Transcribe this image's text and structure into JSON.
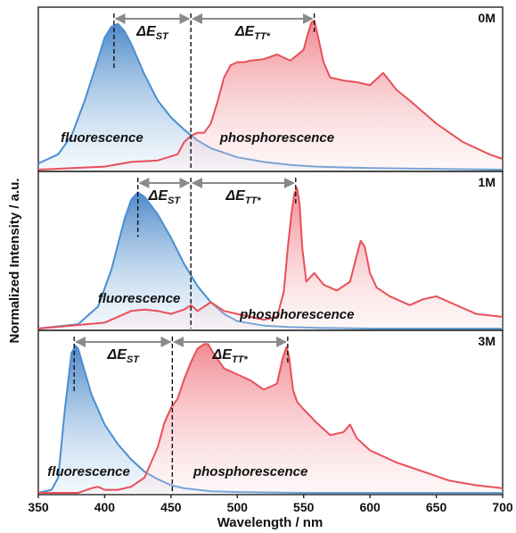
{
  "chart_data": {
    "type": "area",
    "xlabel": "Wavelength / nm",
    "ylabel": "Normalized Intensity / a.u.",
    "xlim": [
      350,
      700
    ],
    "x_ticks": [
      350,
      400,
      450,
      500,
      550,
      600,
      650,
      700
    ],
    "ylim": [
      0,
      1
    ],
    "grid": false,
    "colors": {
      "fluorescence": "#4a8fd0",
      "phosphorescence": "#e8505b"
    },
    "panels": [
      {
        "label": "0M",
        "fluorescence_label": "fluorescence",
        "phosphorescence_label": "phosphorescence",
        "delta_st_label": "ΔE",
        "delta_st_sub": "ST",
        "delta_tt_label": "ΔE",
        "delta_tt_sub": "TT*",
        "marker_fluor_peak": 407,
        "marker_onset": 465,
        "marker_phos_peak": 558,
        "series": [
          {
            "name": "fluorescence",
            "x": [
              350,
              365,
              375,
              385,
              395,
              400,
              405,
              410,
              415,
              420,
              430,
              440,
              450,
              460,
              470,
              480,
              500,
              520,
              540,
              560,
              600,
              650,
              700
            ],
            "y": [
              0.04,
              0.1,
              0.22,
              0.45,
              0.72,
              0.86,
              0.93,
              0.95,
              0.9,
              0.82,
              0.62,
              0.45,
              0.34,
              0.26,
              0.19,
              0.14,
              0.08,
              0.05,
              0.03,
              0.02,
              0.01,
              0.005,
              0.0
            ]
          },
          {
            "name": "phosphorescence",
            "x": [
              350,
              400,
              420,
              440,
              455,
              460,
              465,
              470,
              475,
              480,
              485,
              490,
              495,
              500,
              505,
              510,
              520,
              530,
              540,
              550,
              553,
              556,
              558,
              560,
              565,
              570,
              580,
              590,
              600,
              610,
              620,
              630,
              650,
              670,
              690,
              700
            ],
            "y": [
              0.0,
              0.02,
              0.05,
              0.06,
              0.1,
              0.18,
              0.22,
              0.24,
              0.24,
              0.3,
              0.44,
              0.6,
              0.68,
              0.7,
              0.7,
              0.71,
              0.72,
              0.75,
              0.71,
              0.78,
              0.88,
              0.96,
              0.97,
              0.9,
              0.7,
              0.6,
              0.58,
              0.57,
              0.55,
              0.63,
              0.52,
              0.45,
              0.3,
              0.18,
              0.1,
              0.07
            ]
          }
        ]
      },
      {
        "label": "1M",
        "fluorescence_label": "fluorescence",
        "phosphorescence_label": "phosphorescence",
        "delta_st_label": "ΔE",
        "delta_st_sub": "ST",
        "delta_tt_label": "ΔE",
        "delta_tt_sub": "TT*",
        "marker_fluor_peak": 425,
        "marker_onset": 465,
        "marker_phos_peak": 544,
        "series": [
          {
            "name": "fluorescence",
            "x": [
              350,
              380,
              395,
              405,
              415,
              420,
              425,
              430,
              440,
              450,
              460,
              470,
              480,
              490,
              500,
              520,
              540,
              560,
              600,
              700
            ],
            "y": [
              0.0,
              0.03,
              0.15,
              0.4,
              0.75,
              0.88,
              0.93,
              0.9,
              0.78,
              0.62,
              0.44,
              0.29,
              0.18,
              0.1,
              0.05,
              0.02,
              0.01,
              0.005,
              0.0,
              0.0
            ]
          },
          {
            "name": "phosphorescence",
            "x": [
              350,
              400,
              410,
              420,
              430,
              440,
              450,
              460,
              465,
              470,
              475,
              480,
              490,
              500,
              510,
              520,
              530,
              535,
              538,
              541,
              543,
              545,
              547,
              549,
              552,
              558,
              565,
              575,
              585,
              590,
              593,
              596,
              600,
              605,
              615,
              630,
              640,
              650,
              660,
              680,
              700
            ],
            "y": [
              0.0,
              0.04,
              0.08,
              0.12,
              0.13,
              0.12,
              0.1,
              0.13,
              0.16,
              0.12,
              0.15,
              0.18,
              0.12,
              0.1,
              0.08,
              0.06,
              0.08,
              0.25,
              0.55,
              0.8,
              0.92,
              0.96,
              0.85,
              0.55,
              0.32,
              0.38,
              0.3,
              0.26,
              0.32,
              0.5,
              0.6,
              0.56,
              0.38,
              0.28,
              0.22,
              0.16,
              0.2,
              0.22,
              0.18,
              0.1,
              0.08
            ]
          }
        ]
      },
      {
        "label": "3M",
        "fluorescence_label": "fluorescence",
        "phosphorescence_label": "phosphorescence",
        "delta_st_label": "ΔE",
        "delta_st_sub": "ST",
        "delta_tt_label": "ΔE",
        "delta_tt_sub": "TT*",
        "marker_fluor_peak": 377,
        "marker_onset": 451,
        "marker_phos_peak": 538,
        "series": [
          {
            "name": "fluorescence",
            "x": [
              350,
              360,
              365,
              370,
              375,
              378,
              380,
              385,
              390,
              400,
              410,
              420,
              430,
              440,
              450,
              460,
              480,
              500,
              550,
              700
            ],
            "y": [
              0.0,
              0.02,
              0.1,
              0.55,
              0.92,
              0.97,
              0.95,
              0.8,
              0.65,
              0.45,
              0.32,
              0.22,
              0.14,
              0.09,
              0.05,
              0.03,
              0.01,
              0.005,
              0.0,
              0.0
            ]
          },
          {
            "name": "phosphorescence",
            "x": [
              350,
              380,
              390,
              395,
              400,
              410,
              420,
              430,
              440,
              445,
              450,
              455,
              460,
              465,
              470,
              475,
              478,
              482,
              490,
              500,
              510,
              520,
              530,
              534,
              537,
              539,
              542,
              545,
              550,
              560,
              570,
              580,
              585,
              590,
              600,
              620,
              640,
              660,
              680,
              700
            ],
            "y": [
              0.0,
              0.0,
              0.03,
              0.04,
              0.02,
              0.02,
              0.04,
              0.1,
              0.3,
              0.46,
              0.56,
              0.62,
              0.75,
              0.86,
              0.95,
              0.98,
              0.98,
              0.92,
              0.82,
              0.78,
              0.74,
              0.68,
              0.72,
              0.88,
              0.96,
              0.9,
              0.68,
              0.6,
              0.55,
              0.46,
              0.38,
              0.4,
              0.45,
              0.36,
              0.28,
              0.2,
              0.14,
              0.08,
              0.05,
              0.03
            ]
          }
        ]
      }
    ]
  }
}
